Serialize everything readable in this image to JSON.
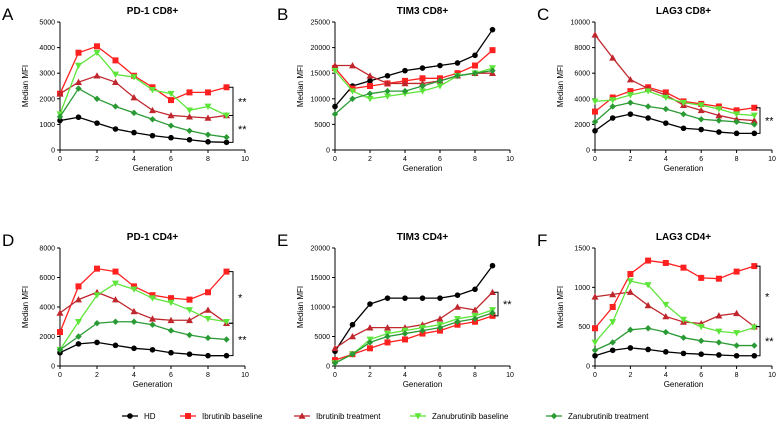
{
  "series_styles": [
    {
      "name": "HD",
      "color": "#000000",
      "marker": "circle"
    },
    {
      "name": "Ibrutinib baseline",
      "color": "#ff2020",
      "marker": "square"
    },
    {
      "name": "Ibrutinib treatment",
      "color": "#c0272d",
      "marker": "triangle"
    },
    {
      "name": "Zanubrutinib baseline",
      "color": "#5ee53a",
      "marker": "triangle-down"
    },
    {
      "name": "Zanubrutinib treatment",
      "color": "#2a9a34",
      "marker": "diamond"
    }
  ],
  "chart_data": [
    {
      "type": "line",
      "panel": "A",
      "title": "PD-1 CD8+",
      "xlabel": "Generation",
      "ylabel": "Median MFI",
      "xlim": [
        0,
        10
      ],
      "ylim": [
        0,
        5000
      ],
      "xticks": [
        0,
        2,
        4,
        6,
        8,
        10
      ],
      "yticks": [
        0,
        1000,
        2000,
        3000,
        4000,
        5000
      ],
      "x": [
        0,
        1,
        2,
        3,
        4,
        5,
        6,
        7,
        8,
        9
      ],
      "series": [
        {
          "name": "HD",
          "values": [
            1150,
            1280,
            1050,
            820,
            680,
            560,
            480,
            400,
            320,
            300
          ]
        },
        {
          "name": "Ibrutinib baseline",
          "values": [
            2200,
            3800,
            4050,
            3500,
            2900,
            2450,
            1950,
            2250,
            2250,
            2450
          ]
        },
        {
          "name": "Ibrutinib treatment",
          "values": [
            2200,
            2650,
            2900,
            2650,
            2050,
            1550,
            1350,
            1300,
            1250,
            1350
          ]
        },
        {
          "name": "Zanubrutinib baseline",
          "values": [
            1400,
            3300,
            3800,
            2950,
            2850,
            2350,
            2200,
            1550,
            1700,
            1350
          ]
        },
        {
          "name": "Zanubrutinib treatment",
          "values": [
            1300,
            2400,
            2000,
            1700,
            1450,
            1200,
            950,
            750,
            600,
            500
          ]
        }
      ],
      "significance": [
        {
          "label": "**",
          "from": 2450,
          "to": 1350
        },
        {
          "label": "**",
          "from": 1350,
          "to": 300
        }
      ]
    },
    {
      "type": "line",
      "panel": "B",
      "title": "TIM3 CD8+",
      "xlabel": "Generation",
      "ylabel": "Median MFI",
      "xlim": [
        0,
        10
      ],
      "ylim": [
        0,
        25000
      ],
      "xticks": [
        0,
        2,
        4,
        6,
        8,
        10
      ],
      "yticks": [
        0,
        5000,
        10000,
        15000,
        20000,
        25000
      ],
      "x": [
        0,
        1,
        2,
        3,
        4,
        5,
        6,
        7,
        8,
        9
      ],
      "series": [
        {
          "name": "HD",
          "values": [
            8500,
            12500,
            13500,
            14500,
            15500,
            16000,
            16500,
            17000,
            18500,
            23500
          ]
        },
        {
          "name": "Ibrutinib baseline",
          "values": [
            16000,
            12000,
            12500,
            13000,
            13500,
            14000,
            14000,
            15000,
            16500,
            19500
          ]
        },
        {
          "name": "Ibrutinib treatment",
          "values": [
            16500,
            16500,
            14500,
            13000,
            13000,
            13000,
            13500,
            14500,
            15000,
            15000
          ]
        },
        {
          "name": "Zanubrutinib baseline",
          "values": [
            15500,
            11500,
            10000,
            10500,
            11000,
            11500,
            12500,
            14500,
            15000,
            16000
          ]
        },
        {
          "name": "Zanubrutinib treatment",
          "values": [
            7000,
            10000,
            11000,
            11500,
            11500,
            12500,
            13500,
            14500,
            15000,
            15500
          ]
        }
      ],
      "significance": []
    },
    {
      "type": "line",
      "panel": "C",
      "title": "LAG3 CD8+",
      "xlabel": "Generation",
      "ylabel": "Median MFI",
      "xlim": [
        0,
        10
      ],
      "ylim": [
        0,
        10000
      ],
      "xticks": [
        0,
        2,
        4,
        6,
        8,
        10
      ],
      "yticks": [
        0,
        2000,
        4000,
        6000,
        8000,
        10000
      ],
      "x": [
        0,
        1,
        2,
        3,
        4,
        5,
        6,
        7,
        8,
        9
      ],
      "series": [
        {
          "name": "HD",
          "values": [
            1500,
            2500,
            2800,
            2500,
            2100,
            1700,
            1600,
            1400,
            1300,
            1300
          ]
        },
        {
          "name": "Ibrutinib baseline",
          "values": [
            3000,
            4100,
            4600,
            4900,
            4500,
            3800,
            3600,
            3400,
            3100,
            3300
          ]
        },
        {
          "name": "Ibrutinib treatment",
          "values": [
            9000,
            7200,
            5500,
            4800,
            4300,
            3500,
            3100,
            2700,
            2400,
            2300
          ]
        },
        {
          "name": "Zanubrutinib baseline",
          "values": [
            3800,
            3900,
            4300,
            4600,
            4100,
            3700,
            3500,
            3200,
            2800,
            2700
          ]
        },
        {
          "name": "Zanubrutinib treatment",
          "values": [
            2200,
            3400,
            3700,
            3400,
            3200,
            2800,
            2400,
            2300,
            2200,
            2000
          ]
        }
      ],
      "significance": [
        {
          "label": "**",
          "from": 3300,
          "to": 1300
        }
      ]
    },
    {
      "type": "line",
      "panel": "D",
      "title": "PD-1 CD4+",
      "xlabel": "Generation",
      "ylabel": "Median MFI",
      "xlim": [
        0,
        10
      ],
      "ylim": [
        0,
        8000
      ],
      "xticks": [
        0,
        2,
        4,
        6,
        8,
        10
      ],
      "yticks": [
        0,
        2000,
        4000,
        6000,
        8000
      ],
      "x": [
        0,
        1,
        2,
        3,
        4,
        5,
        6,
        7,
        8,
        9
      ],
      "series": [
        {
          "name": "HD",
          "values": [
            900,
            1500,
            1600,
            1400,
            1200,
            1100,
            900,
            800,
            700,
            700
          ]
        },
        {
          "name": "Ibrutinib baseline",
          "values": [
            2300,
            5400,
            6600,
            6400,
            5400,
            4800,
            4600,
            4500,
            5000,
            6400
          ]
        },
        {
          "name": "Ibrutinib treatment",
          "values": [
            3600,
            4500,
            5000,
            4500,
            3700,
            3200,
            3100,
            3100,
            3800,
            2900
          ]
        },
        {
          "name": "Zanubrutinib baseline",
          "values": [
            1100,
            3000,
            4800,
            5600,
            5200,
            4600,
            4300,
            3800,
            3200,
            3000
          ]
        },
        {
          "name": "Zanubrutinib treatment",
          "values": [
            1100,
            2000,
            2900,
            3000,
            3000,
            2800,
            2400,
            2100,
            1900,
            1800
          ]
        }
      ],
      "significance": [
        {
          "label": "*",
          "from": 6400,
          "to": 2900
        },
        {
          "label": "**",
          "from": 2900,
          "to": 700
        }
      ]
    },
    {
      "type": "line",
      "panel": "E",
      "title": "TIM3 CD4+",
      "xlabel": "Generation",
      "ylabel": "Median MFI",
      "xlim": [
        0,
        10
      ],
      "ylim": [
        0,
        20000
      ],
      "xticks": [
        0,
        2,
        4,
        6,
        8,
        10
      ],
      "yticks": [
        0,
        5000,
        10000,
        15000,
        20000
      ],
      "x": [
        0,
        1,
        2,
        3,
        4,
        5,
        6,
        7,
        8,
        9
      ],
      "series": [
        {
          "name": "HD",
          "values": [
            2500,
            7000,
            10500,
            11500,
            11500,
            11500,
            11500,
            12000,
            13000,
            17000
          ]
        },
        {
          "name": "Ibrutinib baseline",
          "values": [
            1000,
            2000,
            3000,
            4000,
            4500,
            5500,
            6000,
            7000,
            7500,
            8500
          ]
        },
        {
          "name": "Ibrutinib treatment",
          "values": [
            3000,
            5000,
            6500,
            6500,
            6500,
            7000,
            8000,
            10000,
            9500,
            12500
          ]
        },
        {
          "name": "Zanubrutinib baseline",
          "values": [
            500,
            2000,
            4500,
            5500,
            6000,
            6500,
            7000,
            8000,
            8500,
            9500
          ]
        },
        {
          "name": "Zanubrutinib treatment",
          "values": [
            500,
            2000,
            4000,
            5000,
            5500,
            6000,
            6500,
            7500,
            8000,
            9000
          ]
        }
      ],
      "significance": [
        {
          "label": "**",
          "from": 12500,
          "to": 8500
        }
      ]
    },
    {
      "type": "line",
      "panel": "F",
      "title": "LAG3 CD4+",
      "xlabel": "Generation",
      "ylabel": "Median MFI",
      "xlim": [
        0,
        10
      ],
      "ylim": [
        0,
        1500
      ],
      "xticks": [
        0,
        2,
        4,
        6,
        8,
        10
      ],
      "yticks": [
        0,
        500,
        1000,
        1500
      ],
      "x": [
        0,
        1,
        2,
        3,
        4,
        5,
        6,
        7,
        8,
        9
      ],
      "series": [
        {
          "name": "HD",
          "values": [
            130,
            200,
            230,
            210,
            180,
            160,
            150,
            140,
            130,
            130
          ]
        },
        {
          "name": "Ibrutinib baseline",
          "values": [
            480,
            750,
            1170,
            1340,
            1310,
            1250,
            1120,
            1110,
            1200,
            1270
          ]
        },
        {
          "name": "Ibrutinib treatment",
          "values": [
            880,
            910,
            940,
            770,
            630,
            560,
            540,
            640,
            670,
            500
          ]
        },
        {
          "name": "Zanubrutinib baseline",
          "values": [
            300,
            560,
            1080,
            1030,
            780,
            590,
            500,
            440,
            420,
            490
          ]
        },
        {
          "name": "Zanubrutinib treatment",
          "values": [
            200,
            300,
            460,
            480,
            430,
            360,
            320,
            300,
            260,
            260
          ]
        }
      ],
      "significance": [
        {
          "label": "*",
          "from": 1270,
          "to": 500
        },
        {
          "label": "**",
          "from": 500,
          "to": 130
        }
      ]
    }
  ]
}
